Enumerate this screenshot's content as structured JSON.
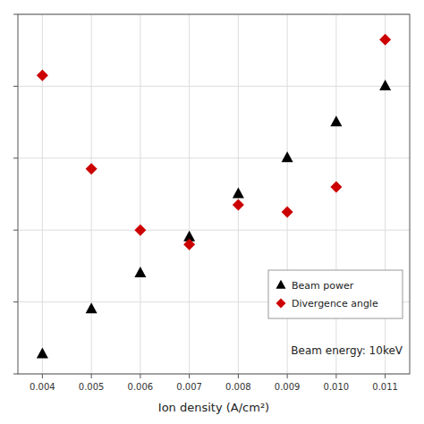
{
  "chart_data": {
    "type": "scatter",
    "xlabel": "Ion density (A/cm²)",
    "annotation": "Beam energy: 10keV",
    "x": [
      0.004,
      0.005,
      0.006,
      0.007,
      0.008,
      0.009,
      0.01,
      0.011
    ],
    "series": [
      {
        "name": "Beam power",
        "color": "#000000",
        "marker": "triangle",
        "values": [
          0.055,
          0.18,
          0.28,
          0.38,
          0.5,
          0.6,
          0.7,
          0.8
        ]
      },
      {
        "name": "Divergence angle",
        "color": "#cc0000",
        "marker": "diamond",
        "values": [
          0.83,
          0.57,
          0.4,
          0.36,
          0.47,
          0.45,
          0.52,
          0.93
        ]
      }
    ],
    "xlim": [
      0.0035,
      0.0115
    ],
    "ylim": [
      0.0,
      1.0
    ],
    "xticks": [
      0.004,
      0.005,
      0.006,
      0.007,
      0.008,
      0.009,
      {
        "value": 0.01,
        "label": "0.010"
      },
      0.011
    ],
    "yticks": [
      0.0,
      0.2,
      0.4,
      0.6,
      0.8,
      1.0
    ],
    "tick_labels": "x",
    "grid": true,
    "legend": "lower right"
  }
}
